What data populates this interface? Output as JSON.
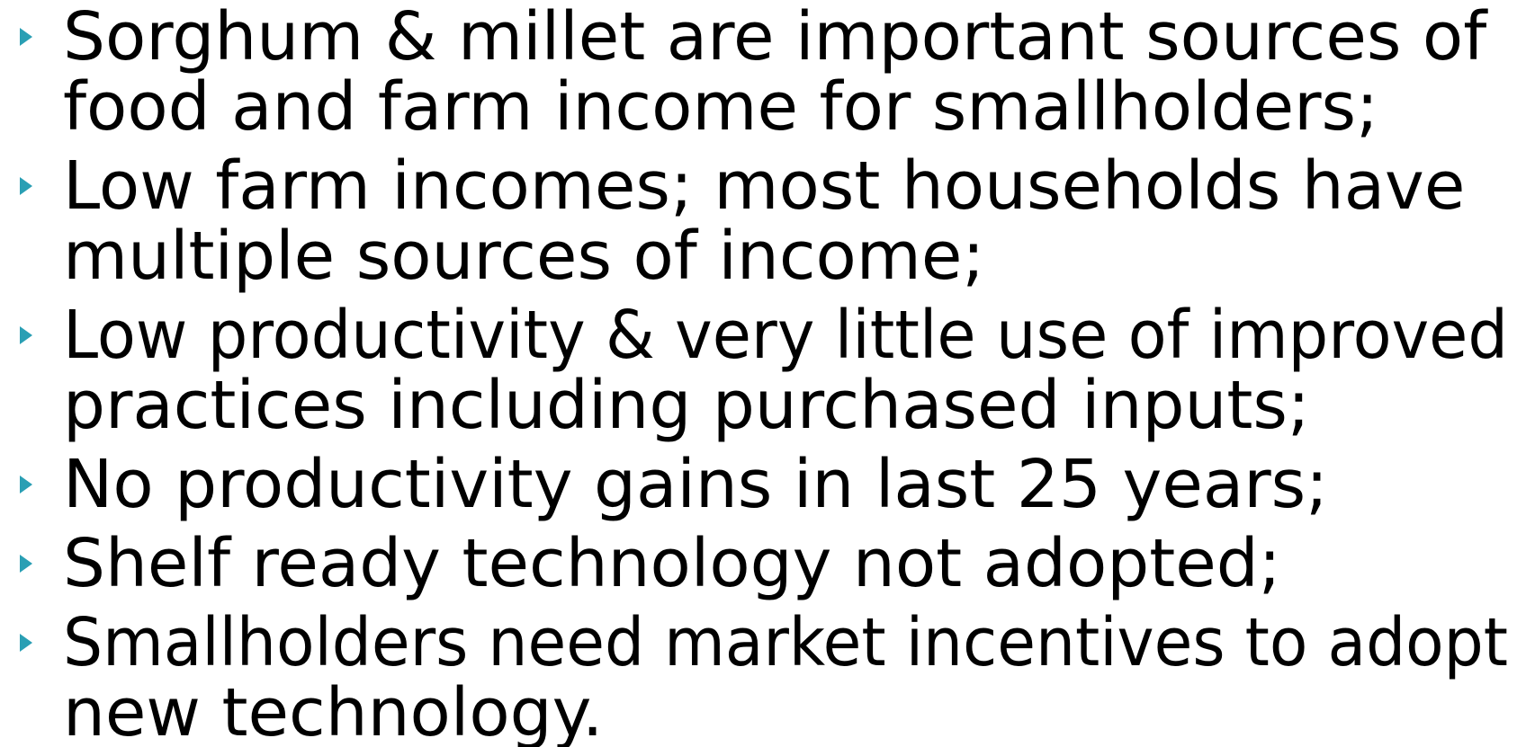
{
  "bullets": [
    {
      "lines": [
        "Sorghum & millet are important sources of",
        "food and farm income for smallholders;"
      ]
    },
    {
      "lines": [
        "Low farm incomes; most households have",
        "multiple sources of income;"
      ]
    },
    {
      "lines": [
        "Low productivity & very little use of improved",
        "practices including purchased inputs;"
      ]
    },
    {
      "lines": [
        "No productivity gains in last 25 years;"
      ]
    },
    {
      "lines": [
        "Shelf ready technology not adopted;"
      ]
    },
    {
      "lines": [
        "Smallholders need market incentives to adopt",
        "new technology."
      ]
    }
  ]
}
